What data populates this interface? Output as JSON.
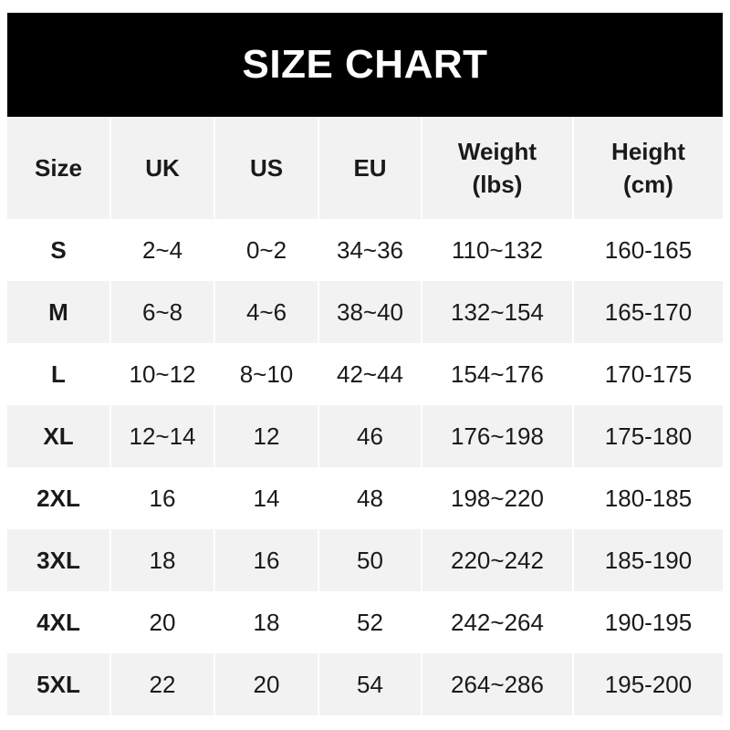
{
  "title": "SIZE CHART",
  "columns": [
    "Size",
    "UK",
    "US",
    "EU",
    "Weight\n(lbs)",
    "Height\n(cm)"
  ],
  "rows": [
    [
      "S",
      "2~4",
      "0~2",
      "34~36",
      "110~132",
      "160-165"
    ],
    [
      "M",
      "6~8",
      "4~6",
      "38~40",
      "132~154",
      "165-170"
    ],
    [
      "L",
      "10~12",
      "8~10",
      "42~44",
      "154~176",
      "170-175"
    ],
    [
      "XL",
      "12~14",
      "12",
      "46",
      "176~198",
      "175-180"
    ],
    [
      "2XL",
      "16",
      "14",
      "48",
      "198~220",
      "180-185"
    ],
    [
      "3XL",
      "18",
      "16",
      "50",
      "220~242",
      "185-190"
    ],
    [
      "4XL",
      "20",
      "18",
      "52",
      "242~264",
      "190-195"
    ],
    [
      "5XL",
      "22",
      "20",
      "54",
      "264~286",
      "195-200"
    ]
  ],
  "colors": {
    "title_bg": "#000000",
    "title_text": "#ffffff",
    "stripe": "#f2f2f2"
  }
}
